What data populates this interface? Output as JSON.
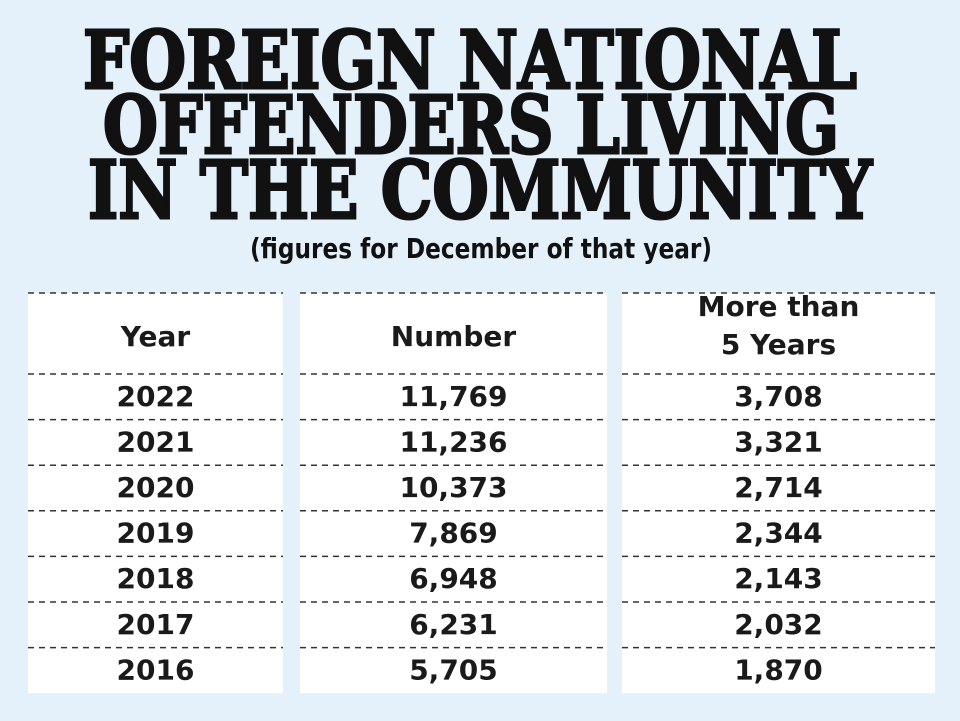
{
  "title": [
    "FOREIGN NATIONAL",
    "OFFENDERS LIVING",
    "IN THE COMMUNITY"
  ],
  "subtitle": "(figures for December of that year)",
  "table": {
    "header": [
      "Year",
      "Number",
      [
        "More than",
        "5 Years"
      ]
    ],
    "rows": [
      [
        "2022",
        "11,769",
        "3,708"
      ],
      [
        "2021",
        "11,236",
        "3,321"
      ],
      [
        "2020",
        "10,373",
        "2,714"
      ],
      [
        "2019",
        "7,869",
        "2,344"
      ],
      [
        "2018",
        "6,948",
        "2,143"
      ],
      [
        "2017",
        "6,231",
        "2,032"
      ],
      [
        "2016",
        "5,705",
        "1,870"
      ]
    ]
  }
}
